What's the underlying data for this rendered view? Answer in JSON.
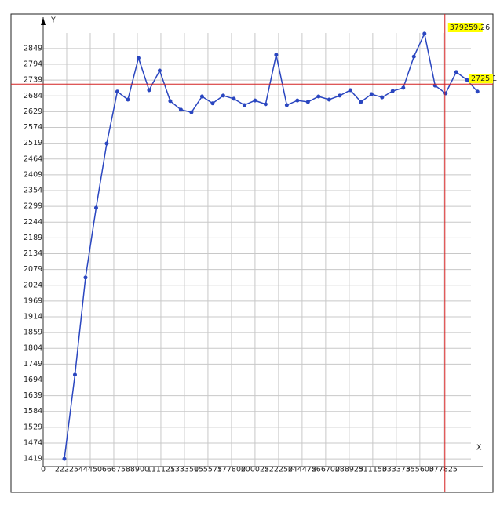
{
  "chart_data": {
    "type": "line",
    "x_label": "X",
    "y_label": "Y",
    "x": [
      20000,
      30000,
      40000,
      50000,
      60000,
      70000,
      80000,
      90000,
      100000,
      110000,
      120000,
      130000,
      140000,
      150000,
      160000,
      170000,
      180000,
      190000,
      200000,
      210000,
      220000,
      230000,
      240000,
      250000,
      260000,
      270000,
      280000,
      290000,
      300000,
      310000,
      320000,
      330000,
      340000,
      350000,
      360000,
      370000,
      380000,
      390000,
      400000,
      410000
    ],
    "series": [
      {
        "name": "Y",
        "color": "#2a46c0",
        "values": [
          1419,
          1712,
          2051,
          2294,
          2518,
          2699,
          2671,
          2816,
          2704,
          2772,
          2666,
          2636,
          2627,
          2682,
          2658,
          2685,
          2674,
          2652,
          2668,
          2655,
          2827,
          2652,
          2668,
          2663,
          2682,
          2671,
          2685,
          2704,
          2663,
          2690,
          2679,
          2701,
          2712,
          2821,
          2901,
          2720,
          2693,
          2767,
          2740,
          2699
        ]
      }
    ],
    "xlim": [
      0,
      415000
    ],
    "ylim": [
      1392,
      2958
    ],
    "xticks": [
      0,
      22225,
      44450,
      66675,
      88900,
      111125,
      133350,
      155575,
      177800,
      200025,
      222250,
      244475,
      266700,
      288925,
      311150,
      333375,
      355600,
      377825
    ],
    "yticks": [
      1419,
      1474,
      1529,
      1584,
      1639,
      1694,
      1749,
      1804,
      1859,
      1914,
      1969,
      2024,
      2079,
      2134,
      2189,
      2244,
      2299,
      2354,
      2409,
      2464,
      2519,
      2574,
      2629,
      2684,
      2739,
      2794,
      2849
    ],
    "grid": true,
    "crosshair": {
      "x": 379259.26,
      "y": 2725.1,
      "color": "#d42020"
    }
  }
}
